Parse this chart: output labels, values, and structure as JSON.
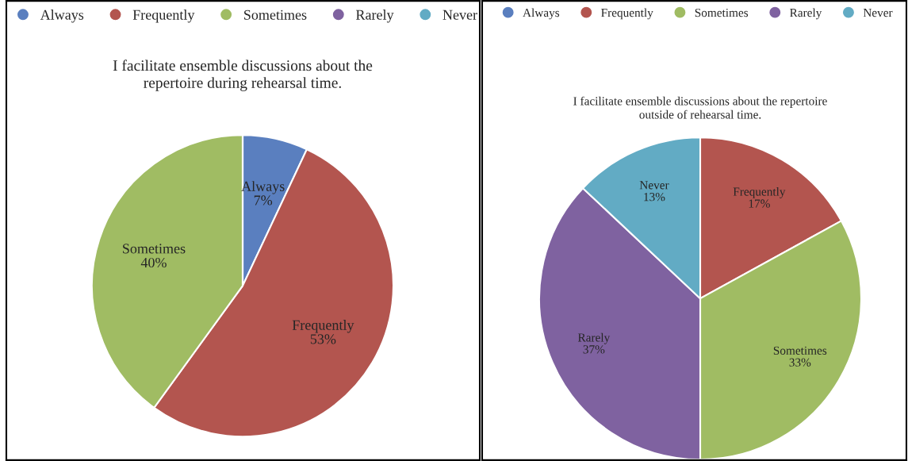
{
  "chart_data": [
    {
      "type": "pie",
      "title": "I facilitate ensemble discussions about the\nrepertoire during rehearsal time.",
      "categories": [
        "Always",
        "Frequently",
        "Sometimes",
        "Rarely",
        "Never"
      ],
      "values": [
        7,
        53,
        40,
        0,
        0
      ],
      "value_labels": [
        "7%",
        "53%",
        "40%",
        null,
        null
      ],
      "colors": [
        "#5a7fbf",
        "#b3554f",
        "#a0bc63",
        "#7f62a0",
        "#62abc4"
      ],
      "legend": "top"
    },
    {
      "type": "pie",
      "title": "I facilitate ensemble discussions about the repertoire\noutside of rehearsal time.",
      "categories": [
        "Always",
        "Frequently",
        "Sometimes",
        "Rarely",
        "Never"
      ],
      "values": [
        0,
        17,
        33,
        37,
        13
      ],
      "value_labels": [
        null,
        "17%",
        "33%",
        "37%",
        "13%"
      ],
      "colors": [
        "#5a7fbf",
        "#b3554f",
        "#a0bc63",
        "#7f62a0",
        "#62abc4"
      ],
      "legend": "top"
    }
  ]
}
